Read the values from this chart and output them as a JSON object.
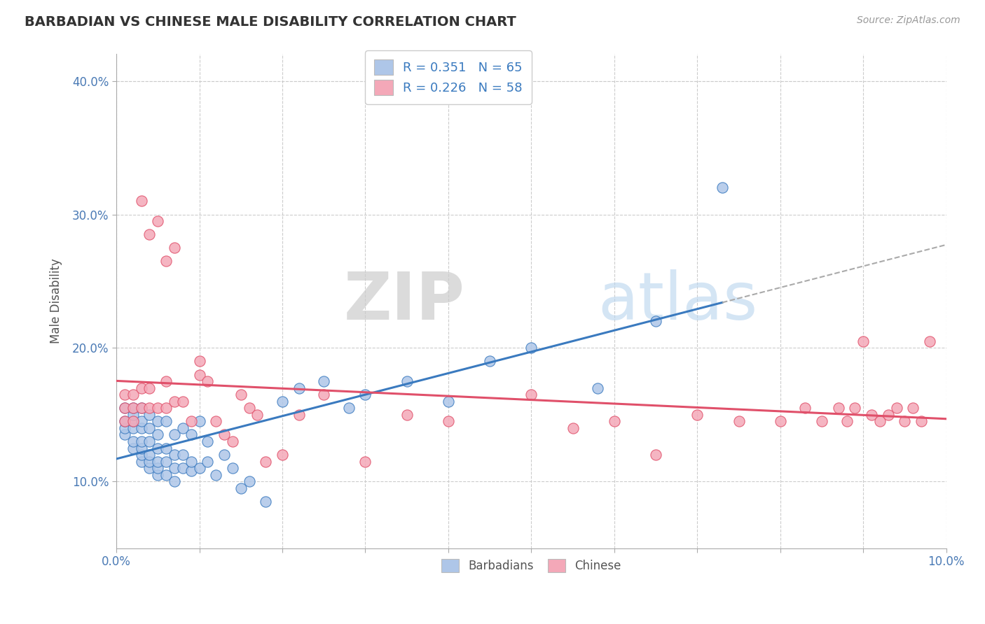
{
  "title": "BARBADIAN VS CHINESE MALE DISABILITY CORRELATION CHART",
  "source": "Source: ZipAtlas.com",
  "ylabel": "Male Disability",
  "xlim": [
    0.0,
    0.1
  ],
  "ylim": [
    0.05,
    0.42
  ],
  "x_ticks": [
    0.0,
    0.01,
    0.02,
    0.03,
    0.04,
    0.05,
    0.06,
    0.07,
    0.08,
    0.09,
    0.1
  ],
  "x_tick_labels": [
    "0.0%",
    "",
    "",
    "",
    "",
    "",
    "",
    "",
    "",
    "",
    "10.0%"
  ],
  "y_ticks": [
    0.1,
    0.2,
    0.3,
    0.4
  ],
  "y_tick_labels": [
    "10.0%",
    "20.0%",
    "30.0%",
    "40.0%"
  ],
  "legend_r1": "0.351",
  "legend_n1": "65",
  "legend_r2": "0.226",
  "legend_n2": "58",
  "blue_color": "#aec6e8",
  "pink_color": "#f4a8b8",
  "blue_line_color": "#3a7abf",
  "pink_line_color": "#e0506a",
  "dashed_color": "#aaaaaa",
  "background_color": "#ffffff",
  "grid_color": "#cccccc",
  "watermark_zip": "ZIP",
  "watermark_atlas": "atlas",
  "barbadians_x": [
    0.001,
    0.001,
    0.001,
    0.001,
    0.002,
    0.002,
    0.002,
    0.002,
    0.002,
    0.002,
    0.003,
    0.003,
    0.003,
    0.003,
    0.003,
    0.003,
    0.003,
    0.004,
    0.004,
    0.004,
    0.004,
    0.004,
    0.004,
    0.005,
    0.005,
    0.005,
    0.005,
    0.005,
    0.005,
    0.006,
    0.006,
    0.006,
    0.006,
    0.007,
    0.007,
    0.007,
    0.007,
    0.008,
    0.008,
    0.008,
    0.009,
    0.009,
    0.009,
    0.01,
    0.01,
    0.011,
    0.011,
    0.012,
    0.013,
    0.014,
    0.015,
    0.016,
    0.018,
    0.02,
    0.022,
    0.025,
    0.028,
    0.03,
    0.035,
    0.04,
    0.045,
    0.05,
    0.058,
    0.065,
    0.073
  ],
  "barbadians_y": [
    0.135,
    0.14,
    0.145,
    0.155,
    0.125,
    0.13,
    0.14,
    0.145,
    0.15,
    0.155,
    0.115,
    0.12,
    0.125,
    0.13,
    0.14,
    0.145,
    0.155,
    0.11,
    0.115,
    0.12,
    0.13,
    0.14,
    0.15,
    0.105,
    0.11,
    0.115,
    0.125,
    0.135,
    0.145,
    0.105,
    0.115,
    0.125,
    0.145,
    0.1,
    0.11,
    0.12,
    0.135,
    0.11,
    0.12,
    0.14,
    0.108,
    0.115,
    0.135,
    0.11,
    0.145,
    0.115,
    0.13,
    0.105,
    0.12,
    0.11,
    0.095,
    0.1,
    0.085,
    0.16,
    0.17,
    0.175,
    0.155,
    0.165,
    0.175,
    0.16,
    0.19,
    0.2,
    0.17,
    0.22,
    0.32
  ],
  "chinese_x": [
    0.001,
    0.001,
    0.001,
    0.002,
    0.002,
    0.002,
    0.003,
    0.003,
    0.003,
    0.004,
    0.004,
    0.004,
    0.005,
    0.005,
    0.006,
    0.006,
    0.006,
    0.007,
    0.007,
    0.008,
    0.009,
    0.01,
    0.01,
    0.011,
    0.012,
    0.013,
    0.014,
    0.015,
    0.016,
    0.017,
    0.018,
    0.02,
    0.022,
    0.025,
    0.03,
    0.035,
    0.04,
    0.05,
    0.055,
    0.06,
    0.065,
    0.07,
    0.075,
    0.08,
    0.083,
    0.085,
    0.087,
    0.088,
    0.089,
    0.09,
    0.091,
    0.092,
    0.093,
    0.094,
    0.095,
    0.096,
    0.097,
    0.098
  ],
  "chinese_y": [
    0.145,
    0.155,
    0.165,
    0.145,
    0.155,
    0.165,
    0.155,
    0.17,
    0.31,
    0.155,
    0.17,
    0.285,
    0.155,
    0.295,
    0.155,
    0.175,
    0.265,
    0.16,
    0.275,
    0.16,
    0.145,
    0.18,
    0.19,
    0.175,
    0.145,
    0.135,
    0.13,
    0.165,
    0.155,
    0.15,
    0.115,
    0.12,
    0.15,
    0.165,
    0.115,
    0.15,
    0.145,
    0.165,
    0.14,
    0.145,
    0.12,
    0.15,
    0.145,
    0.145,
    0.155,
    0.145,
    0.155,
    0.145,
    0.155,
    0.205,
    0.15,
    0.145,
    0.15,
    0.155,
    0.145,
    0.155,
    0.145,
    0.205
  ]
}
